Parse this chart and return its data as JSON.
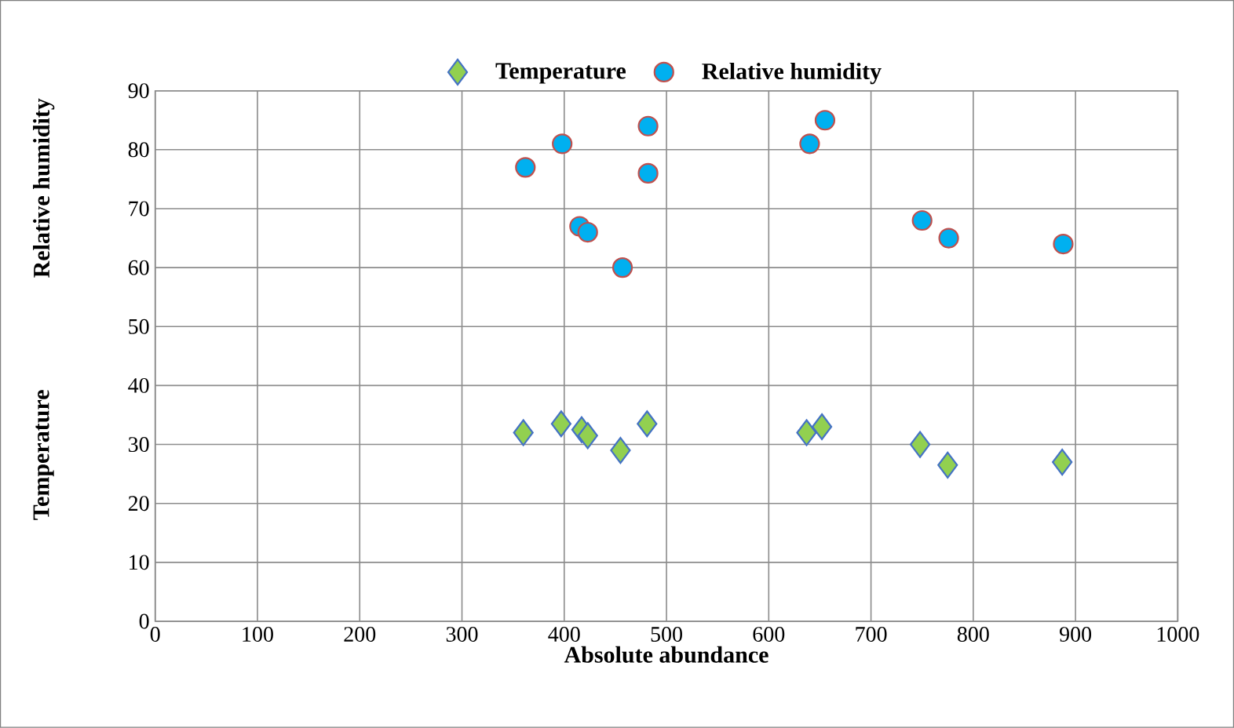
{
  "chart_data": {
    "type": "scatter",
    "xlabel": "Absolute abundance",
    "ylabel": "Temperature",
    "annotations": [
      "Relative humidity"
    ],
    "xlim": [
      0,
      1000
    ],
    "xticks": [
      0,
      100,
      200,
      300,
      400,
      500,
      600,
      700,
      800,
      900,
      1000
    ],
    "ylim": [
      0,
      90
    ],
    "yticks": [
      0,
      10,
      20,
      30,
      40,
      50,
      60,
      70,
      80,
      90
    ],
    "grid": true,
    "legend": "top",
    "series": [
      {
        "name": "Temperature",
        "color": "#92d050",
        "marker": "diamond",
        "x": [
          360,
          397,
          417,
          423,
          455,
          481,
          637,
          652,
          748,
          775,
          887
        ],
        "values": [
          32,
          33.5,
          32.5,
          31.5,
          29,
          33.5,
          32,
          33,
          30,
          26.5,
          27
        ]
      },
      {
        "name": "Relative humidity",
        "color": "#00b0f0",
        "marker": "circle",
        "x": [
          362,
          398,
          415,
          423,
          457,
          482,
          482,
          640,
          655,
          750,
          776,
          888
        ],
        "values": [
          77,
          81,
          67,
          66,
          60,
          84,
          76,
          81,
          85,
          68,
          65,
          64
        ]
      }
    ]
  }
}
